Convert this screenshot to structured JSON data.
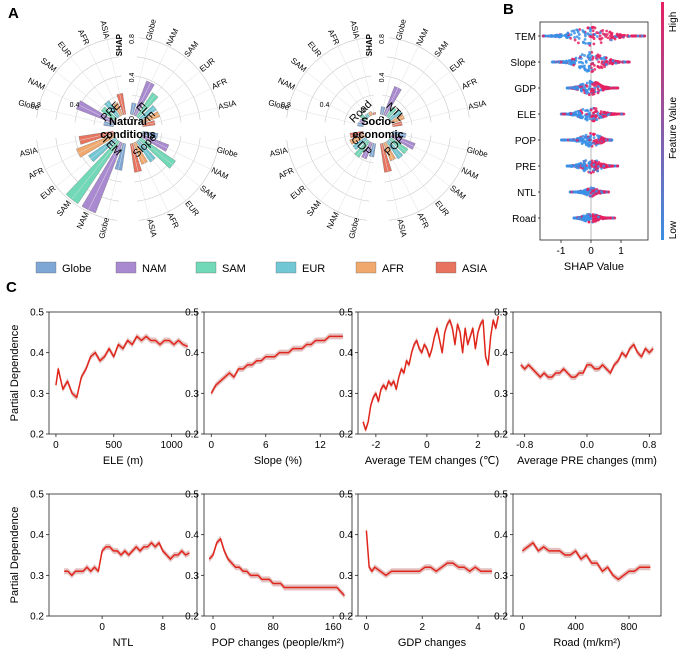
{
  "panel_labels": {
    "a": "A",
    "b": "B",
    "c": "C"
  },
  "colors": {
    "Globe": "#7FA7D6",
    "NAM": "#A98AD0",
    "SAM": "#71D8B8",
    "EUR": "#72C7D4",
    "AFR": "#F0A86C",
    "ASIA": "#E8735E",
    "line": "#E0261B",
    "band": "#D9A6A6",
    "low": "#3A8FE6",
    "high": "#E52060"
  },
  "panel_a": {
    "regions": [
      "Globe",
      "NAM",
      "SAM",
      "EUR",
      "AFR",
      "ASIA"
    ],
    "shap_label": "SHAP",
    "ticks": [
      "0",
      "0.4",
      "0.8"
    ],
    "natural_title": [
      "Natural",
      "conditions"
    ],
    "socio_title": [
      "Socio-",
      "economic"
    ]
  },
  "chart_data": [
    {
      "id": "A-natural",
      "type": "polar-bar",
      "title": "Natural conditions",
      "ylabel": "SHAP",
      "ylim": [
        0,
        0.8
      ],
      "categories": [
        "Globe",
        "NAM",
        "SAM",
        "EUR",
        "AFR",
        "ASIA"
      ],
      "series": [
        {
          "name": "PRE",
          "values": [
            0.1,
            0.42,
            0.18,
            0.2,
            0.14,
            0.22
          ]
        },
        {
          "name": "ELE",
          "values": [
            0.12,
            0.38,
            0.3,
            0.2,
            0.2,
            0.13
          ]
        },
        {
          "name": "TEM",
          "values": [
            0.28,
            0.78,
            0.78,
            0.34,
            0.42,
            0.36
          ]
        },
        {
          "name": "Slope",
          "values": [
            0.16,
            0.3,
            0.44,
            0.26,
            0.24,
            0.3
          ]
        }
      ]
    },
    {
      "id": "A-socio",
      "type": "polar-bar",
      "title": "Socio-economic",
      "ylabel": "SHAP",
      "ylim": [
        0,
        0.8
      ],
      "categories": [
        "Globe",
        "NAM",
        "SAM",
        "EUR",
        "AFR",
        "ASIA"
      ],
      "series": [
        {
          "name": "Road",
          "values": [
            0.06,
            0.05,
            0.07,
            0.04,
            0.04,
            0.02
          ]
        },
        {
          "name": "NTL",
          "values": [
            0.08,
            0.32,
            0.12,
            0.14,
            0.14,
            0.1
          ]
        },
        {
          "name": "GDP",
          "values": [
            0.14,
            0.18,
            0.2,
            0.16,
            0.16,
            0.14
          ]
        },
        {
          "name": "POP",
          "values": [
            0.14,
            0.26,
            0.22,
            0.22,
            0.2,
            0.3
          ]
        }
      ]
    },
    {
      "id": "B",
      "type": "beeswarm",
      "features": [
        "TEM",
        "Slope",
        "GDP",
        "ELE",
        "POP",
        "PRE",
        "NTL",
        "Road"
      ],
      "ranges": [
        [
          -1.6,
          1.8
        ],
        [
          -1.3,
          1.3
        ],
        [
          -0.8,
          0.9
        ],
        [
          -1.0,
          1.1
        ],
        [
          -1.0,
          0.7
        ],
        [
          -0.8,
          0.9
        ],
        [
          -0.7,
          0.6
        ],
        [
          -0.6,
          0.8
        ]
      ],
      "xlabel": "SHAP Value",
      "xticks": [
        "-1",
        "0",
        "1"
      ],
      "xlim": [
        -1.7,
        1.9
      ],
      "colorbar": {
        "title": "Feature Value",
        "high": "High",
        "low": "Low"
      }
    },
    {
      "id": "C",
      "type": "line",
      "ylabel": "Partial Dependence",
      "ylim": [
        0.2,
        0.5
      ],
      "yticks": [
        "0.2",
        "0.3",
        "0.4",
        "0.5"
      ],
      "panels": [
        {
          "xlabel": "ELE (m)",
          "xlim": [
            -60,
            1220
          ],
          "xticks": [
            [
              0,
              "0"
            ],
            [
              500,
              "500"
            ],
            [
              1000,
              "1000"
            ]
          ],
          "x": [
            0,
            20,
            60,
            100,
            140,
            180,
            220,
            260,
            300,
            340,
            380,
            420,
            460,
            500,
            540,
            580,
            620,
            660,
            700,
            740,
            780,
            820,
            860,
            900,
            940,
            980,
            1020,
            1060,
            1100,
            1140
          ],
          "y": [
            0.32,
            0.36,
            0.31,
            0.33,
            0.3,
            0.29,
            0.34,
            0.36,
            0.39,
            0.4,
            0.38,
            0.39,
            0.41,
            0.39,
            0.42,
            0.41,
            0.43,
            0.42,
            0.44,
            0.43,
            0.44,
            0.43,
            0.43,
            0.42,
            0.43,
            0.43,
            0.42,
            0.43,
            0.42,
            0.415
          ]
        },
        {
          "xlabel": "Slope (%)",
          "xlim": [
            -0.8,
            15.5
          ],
          "xticks": [
            [
              0,
              "0"
            ],
            [
              6,
              "6"
            ],
            [
              12,
              "12"
            ]
          ],
          "x": [
            0,
            0.5,
            1,
            1.5,
            2,
            2.5,
            3,
            3.5,
            4,
            4.5,
            5,
            5.5,
            6,
            6.5,
            7,
            7.5,
            8,
            8.5,
            9,
            9.5,
            10,
            10.5,
            11,
            11.5,
            12,
            12.5,
            13,
            13.5,
            14,
            14.5
          ],
          "y": [
            0.3,
            0.32,
            0.33,
            0.34,
            0.35,
            0.34,
            0.36,
            0.36,
            0.37,
            0.37,
            0.38,
            0.38,
            0.39,
            0.39,
            0.39,
            0.4,
            0.4,
            0.4,
            0.41,
            0.41,
            0.41,
            0.42,
            0.42,
            0.43,
            0.43,
            0.43,
            0.44,
            0.44,
            0.44,
            0.44
          ]
        },
        {
          "xlabel": "Average TEM changes (℃)",
          "xlim": [
            -2.7,
            3.1
          ],
          "xticks": [
            [
              -2,
              "-2"
            ],
            [
              0,
              "0"
            ],
            [
              2,
              "2"
            ]
          ],
          "x": [
            -2.5,
            -2.4,
            -2.3,
            -2.2,
            -2.1,
            -2.0,
            -1.9,
            -1.8,
            -1.7,
            -1.6,
            -1.5,
            -1.4,
            -1.3,
            -1.2,
            -1.1,
            -1.0,
            -0.9,
            -0.8,
            -0.7,
            -0.6,
            -0.5,
            -0.4,
            -0.3,
            -0.2,
            -0.1,
            0.0,
            0.1,
            0.2,
            0.3,
            0.4,
            0.5,
            0.6,
            0.7,
            0.8,
            0.9,
            1.0,
            1.1,
            1.2,
            1.3,
            1.4,
            1.5,
            1.6,
            1.7,
            1.8,
            1.9,
            2.0,
            2.1,
            2.2,
            2.3,
            2.4,
            2.5,
            2.6,
            2.7,
            2.8
          ],
          "y": [
            0.23,
            0.21,
            0.23,
            0.27,
            0.29,
            0.3,
            0.28,
            0.31,
            0.32,
            0.31,
            0.33,
            0.32,
            0.33,
            0.31,
            0.34,
            0.36,
            0.35,
            0.38,
            0.37,
            0.4,
            0.42,
            0.43,
            0.41,
            0.4,
            0.42,
            0.41,
            0.39,
            0.41,
            0.44,
            0.46,
            0.43,
            0.4,
            0.45,
            0.47,
            0.48,
            0.46,
            0.42,
            0.47,
            0.45,
            0.4,
            0.46,
            0.42,
            0.44,
            0.46,
            0.41,
            0.45,
            0.47,
            0.48,
            0.39,
            0.37,
            0.44,
            0.48,
            0.46,
            0.49
          ]
        },
        {
          "xlabel": "Average PRE changes (mm)",
          "xlim": [
            -0.95,
            0.95
          ],
          "xticks": [
            [
              -0.8,
              "-0.8"
            ],
            [
              0,
              "0.0"
            ],
            [
              0.8,
              "0.8"
            ]
          ],
          "x": [
            -0.85,
            -0.8,
            -0.75,
            -0.7,
            -0.65,
            -0.6,
            -0.55,
            -0.5,
            -0.45,
            -0.4,
            -0.35,
            -0.3,
            -0.25,
            -0.2,
            -0.15,
            -0.1,
            -0.05,
            0.0,
            0.05,
            0.1,
            0.15,
            0.2,
            0.25,
            0.3,
            0.35,
            0.4,
            0.45,
            0.5,
            0.55,
            0.6,
            0.65,
            0.7,
            0.75,
            0.8,
            0.85
          ],
          "y": [
            0.37,
            0.36,
            0.37,
            0.36,
            0.35,
            0.34,
            0.35,
            0.34,
            0.34,
            0.35,
            0.35,
            0.36,
            0.35,
            0.34,
            0.34,
            0.35,
            0.35,
            0.37,
            0.37,
            0.36,
            0.36,
            0.37,
            0.36,
            0.35,
            0.37,
            0.38,
            0.4,
            0.39,
            0.41,
            0.42,
            0.4,
            0.39,
            0.41,
            0.4,
            0.41
          ]
        }
      ]
    },
    {
      "id": "C-row2",
      "type": "line",
      "ylabel": "Partial Dependence",
      "ylim": [
        0.2,
        0.5
      ],
      "yticks": [
        "0.2",
        "0.3",
        "0.4",
        "0.5"
      ],
      "panels": [
        {
          "xlabel": "NTL",
          "xlim": [
            -7,
            12.5
          ],
          "xticks": [
            [
              0,
              "0"
            ],
            [
              8,
              "8"
            ]
          ],
          "x": [
            -5,
            -4.5,
            -4,
            -3.5,
            -3,
            -2.5,
            -2,
            -1.5,
            -1,
            -0.5,
            0,
            0.5,
            1,
            1.5,
            2,
            2.5,
            3,
            3.5,
            4,
            4.5,
            5,
            5.5,
            6,
            6.5,
            7,
            7.5,
            8,
            8.5,
            9,
            9.5,
            10,
            10.5,
            11,
            11.5
          ],
          "y": [
            0.31,
            0.31,
            0.3,
            0.31,
            0.31,
            0.31,
            0.32,
            0.31,
            0.32,
            0.31,
            0.36,
            0.37,
            0.37,
            0.36,
            0.36,
            0.35,
            0.36,
            0.35,
            0.36,
            0.37,
            0.36,
            0.37,
            0.37,
            0.38,
            0.37,
            0.38,
            0.36,
            0.35,
            0.34,
            0.35,
            0.35,
            0.36,
            0.35,
            0.355
          ]
        },
        {
          "xlabel": "POP changes (people/km²)",
          "xlim": [
            -12,
            185
          ],
          "xticks": [
            [
              0,
              "0"
            ],
            [
              80,
              "80"
            ],
            [
              160,
              "160"
            ]
          ],
          "x": [
            -5,
            0,
            5,
            10,
            15,
            20,
            25,
            30,
            35,
            40,
            45,
            50,
            55,
            60,
            65,
            70,
            75,
            80,
            85,
            90,
            95,
            100,
            105,
            110,
            115,
            120,
            125,
            130,
            135,
            140,
            145,
            150,
            155,
            160,
            165,
            170,
            175
          ],
          "y": [
            0.34,
            0.35,
            0.38,
            0.39,
            0.36,
            0.34,
            0.33,
            0.32,
            0.32,
            0.31,
            0.31,
            0.3,
            0.3,
            0.3,
            0.29,
            0.29,
            0.29,
            0.28,
            0.28,
            0.28,
            0.27,
            0.27,
            0.27,
            0.27,
            0.27,
            0.27,
            0.27,
            0.27,
            0.27,
            0.27,
            0.27,
            0.27,
            0.27,
            0.27,
            0.27,
            0.26,
            0.25
          ]
        },
        {
          "xlabel": "GDP changes",
          "xlim": [
            -0.3,
            5.0
          ],
          "xticks": [
            [
              0,
              "0"
            ],
            [
              2,
              "2"
            ],
            [
              4,
              "4"
            ]
          ],
          "x": [
            0.0,
            0.1,
            0.2,
            0.3,
            0.5,
            0.7,
            0.9,
            1.1,
            1.3,
            1.5,
            1.7,
            1.9,
            2.1,
            2.3,
            2.5,
            2.7,
            2.9,
            3.1,
            3.3,
            3.5,
            3.7,
            3.9,
            4.1,
            4.3,
            4.5
          ],
          "y": [
            0.41,
            0.32,
            0.31,
            0.32,
            0.31,
            0.3,
            0.31,
            0.31,
            0.31,
            0.31,
            0.31,
            0.31,
            0.32,
            0.32,
            0.31,
            0.32,
            0.33,
            0.33,
            0.32,
            0.32,
            0.31,
            0.32,
            0.31,
            0.31,
            0.31
          ]
        },
        {
          "xlabel": "Road (m/km²)",
          "xlim": [
            -70,
            1040
          ],
          "xticks": [
            [
              0,
              "0"
            ],
            [
              400,
              "400"
            ],
            [
              800,
              "800"
            ]
          ],
          "x": [
            0,
            40,
            80,
            120,
            160,
            200,
            240,
            280,
            320,
            360,
            400,
            440,
            480,
            520,
            560,
            600,
            640,
            680,
            720,
            760,
            800,
            840,
            880,
            920,
            960
          ],
          "y": [
            0.36,
            0.37,
            0.38,
            0.36,
            0.37,
            0.36,
            0.36,
            0.36,
            0.35,
            0.35,
            0.36,
            0.34,
            0.35,
            0.33,
            0.33,
            0.31,
            0.32,
            0.3,
            0.29,
            0.3,
            0.31,
            0.31,
            0.32,
            0.32,
            0.32
          ]
        }
      ]
    }
  ]
}
